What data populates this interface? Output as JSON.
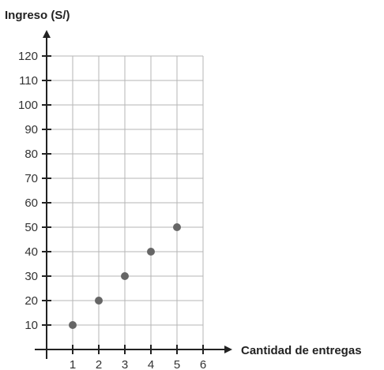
{
  "chart_data": {
    "type": "scatter",
    "xlabel": "Cantidad de entregas",
    "ylabel": "Ingreso (S/)",
    "xlim": [
      0,
      6
    ],
    "ylim": [
      0,
      120
    ],
    "x_ticks": [
      "1",
      "2",
      "3",
      "4",
      "5",
      "6"
    ],
    "y_ticks": [
      "10",
      "20",
      "30",
      "40",
      "50",
      "60",
      "70",
      "80",
      "90",
      "100",
      "110",
      "120"
    ],
    "grid": true,
    "point_color": "#666666",
    "series": [
      {
        "x": [
          1,
          2,
          3,
          4,
          5
        ],
        "y": [
          10,
          20,
          30,
          40,
          50
        ]
      }
    ]
  }
}
